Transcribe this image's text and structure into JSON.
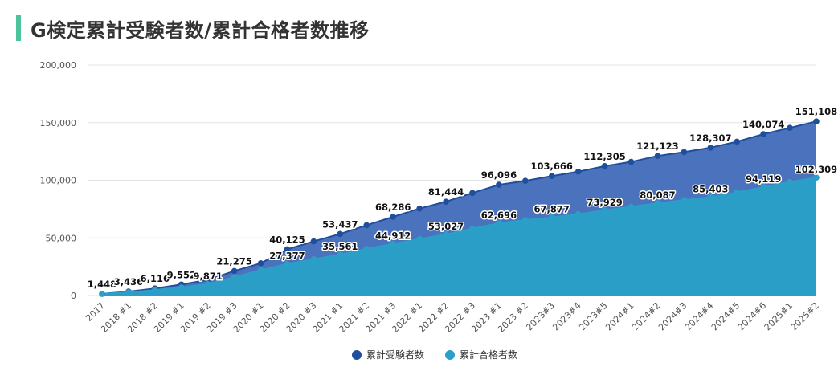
{
  "header": {
    "title": "G検定累計受験者数/累計合格者数推移"
  },
  "colors": {
    "exam_area": "#4a72bd",
    "exam_line": "#1f4f9c",
    "pass_area": "#2a9ec7",
    "pass_line": "#2aa0c8",
    "title_accent": "#4cc39a"
  },
  "chart_data": {
    "type": "area",
    "title": "G検定累計受験者数/累計合格者数推移",
    "categories": [
      "2017",
      "2018 #1",
      "2018 #2",
      "2019 #1",
      "2019 #2",
      "2019 #3",
      "2020 #1",
      "2020 #2",
      "2020 #3",
      "2021 #1",
      "2021 #2",
      "2021 #3",
      "2022 #1",
      "2022 #2",
      "2022 #3",
      "2023 #1",
      "2023 #2",
      "2023#3",
      "2023#4",
      "2023#5",
      "2024#1",
      "2024#2",
      "2024#3",
      "2024#4",
      "2024#5",
      "2024#6",
      "2025#1",
      "2025#2"
    ],
    "series": [
      {
        "name": "累計受験者数",
        "values": [
          1448,
          3436,
          6116,
          9552,
          13500,
          21275,
          28000,
          40125,
          47000,
          53437,
          61000,
          68286,
          75500,
          81444,
          89000,
          96096,
          99500,
          103666,
          107500,
          112305,
          116000,
          121123,
          124500,
          128307,
          133500,
          140074,
          145500,
          151108
        ],
        "data_labels": {
          "0": "1,448",
          "1": "3,436",
          "2": "6,116",
          "3": "9,552",
          "5": "21,275",
          "7": "40,125",
          "9": "53,437",
          "11": "68,286",
          "13": "81,444",
          "15": "96,096",
          "17": "103,666",
          "19": "112,305",
          "21": "121,123",
          "23": "128,307",
          "25": "140,074",
          "27": "151,108"
        }
      },
      {
        "name": "累計合格者数",
        "values": [
          1448,
          2800,
          4800,
          7000,
          9871,
          16000,
          22000,
          27377,
          31500,
          35561,
          40500,
          44912,
          49000,
          53027,
          58000,
          62696,
          65500,
          67877,
          70500,
          73929,
          77000,
          80087,
          82800,
          85403,
          89500,
          94119,
          98500,
          102309
        ],
        "data_labels": {
          "4": "9,871",
          "7": "27,377",
          "9": "35,561",
          "11": "44,912",
          "13": "53,027",
          "15": "62,696",
          "17": "67,877",
          "19": "73,929",
          "21": "80,087",
          "23": "85,403",
          "25": "94,119",
          "27": "102,309"
        }
      }
    ],
    "yticks": [
      "0",
      "50,000",
      "100,000",
      "150,000",
      "200,000"
    ],
    "ylim": [
      0,
      200000
    ],
    "grid": true,
    "legend": "bottom-center"
  }
}
